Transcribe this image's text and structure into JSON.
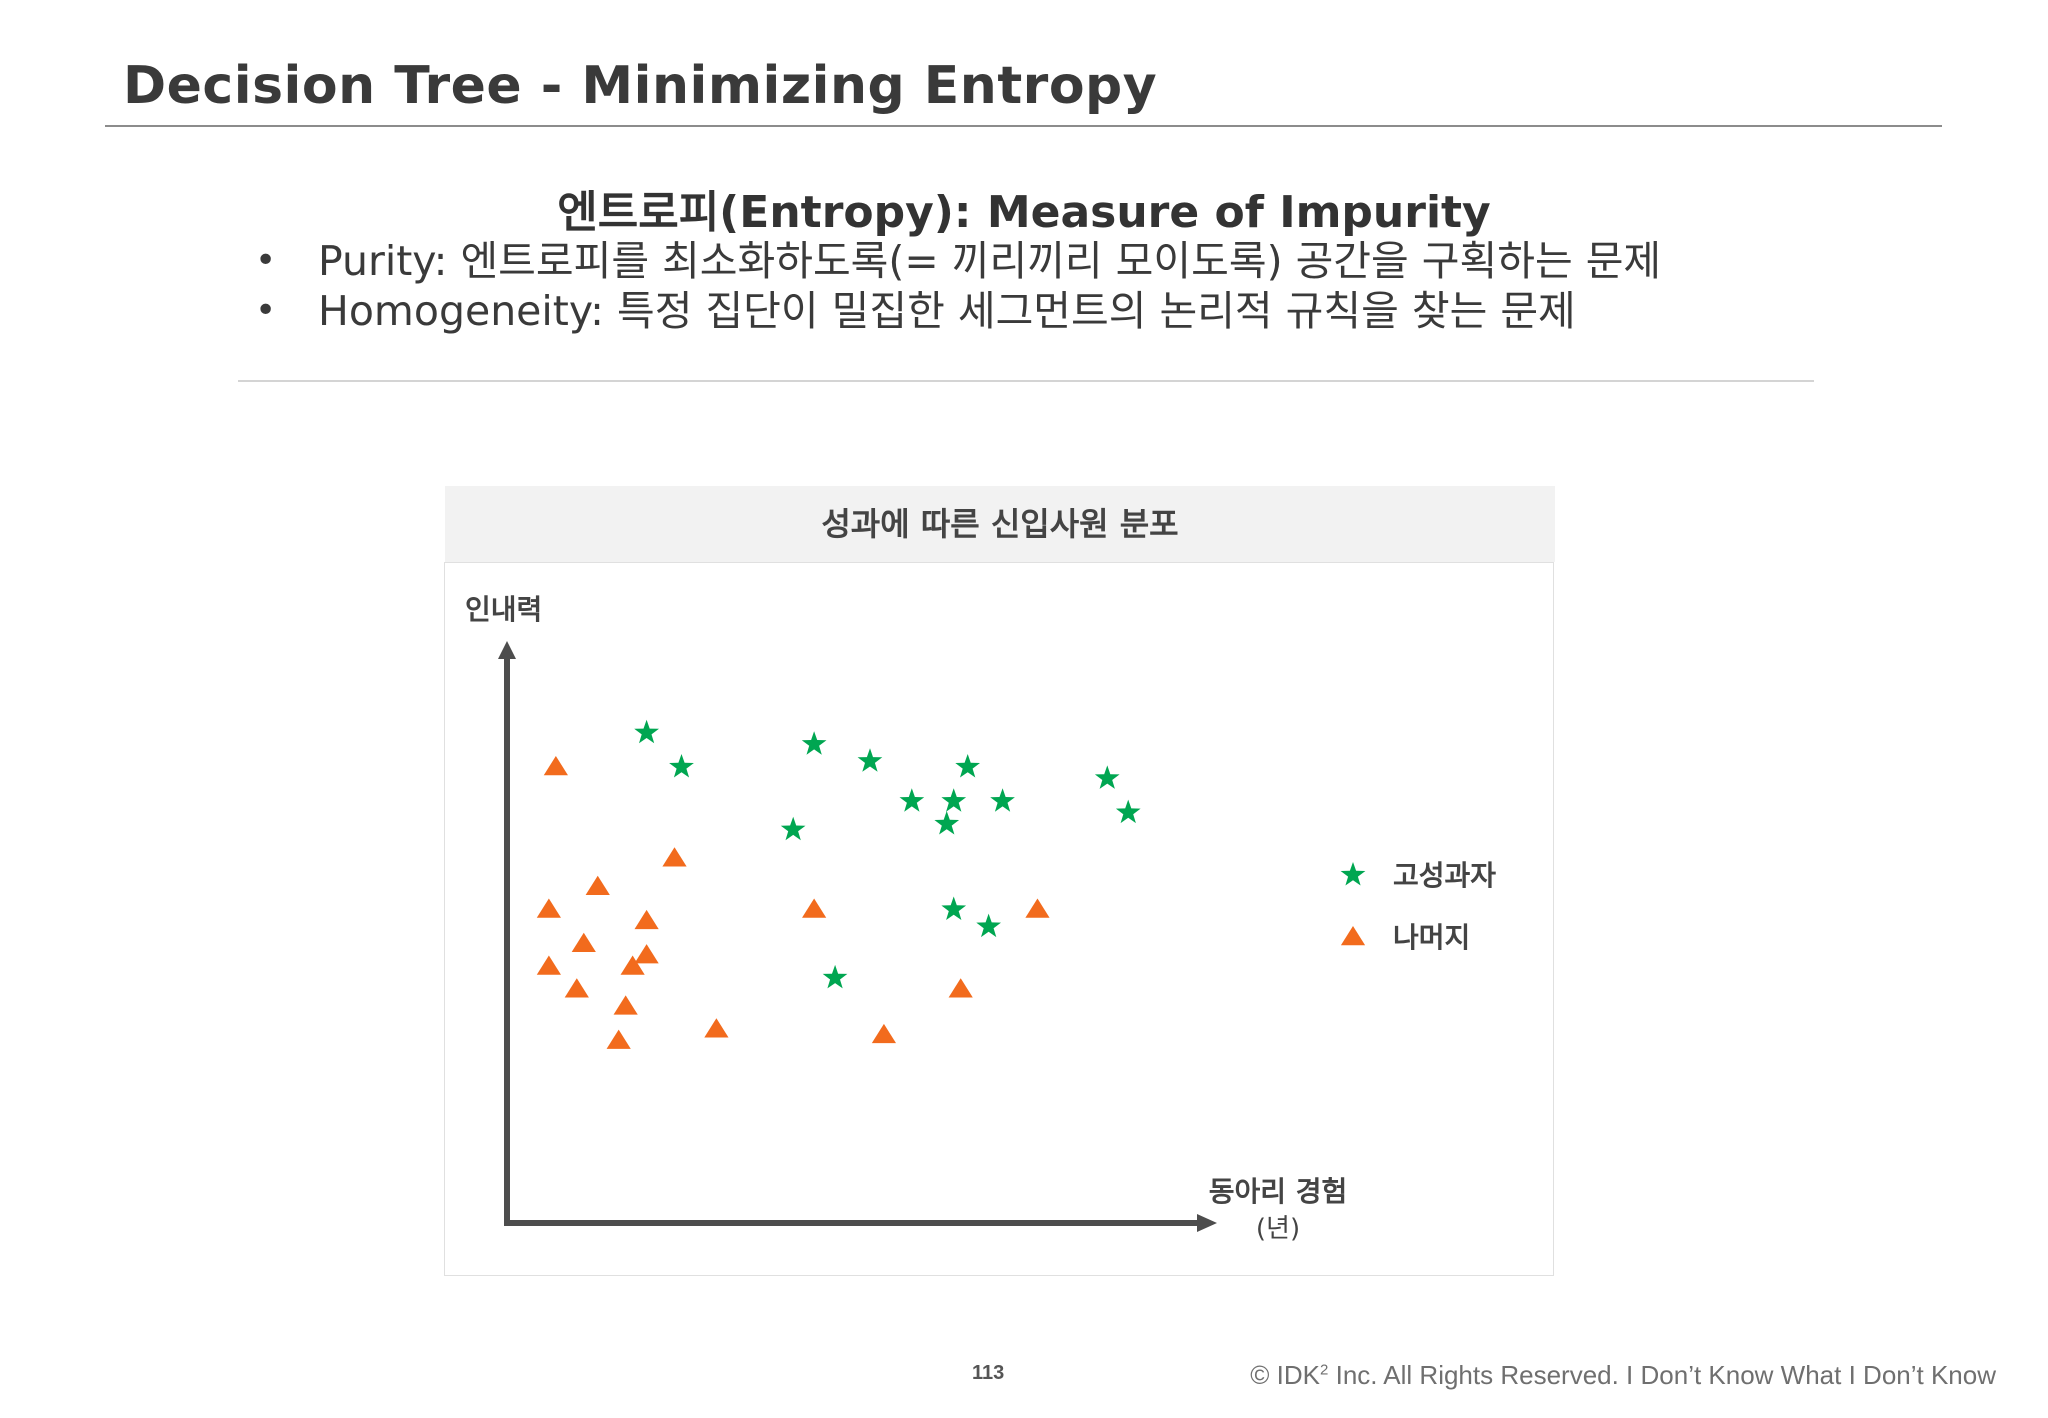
{
  "header": {
    "title": "Decision Tree - Minimizing Entropy"
  },
  "subtitle": "엔트로피(Entropy): Measure of Impurity",
  "bullets": [
    {
      "marker": "•",
      "text": "Purity: 엔트로피를 최소화하도록(= 끼리끼리 모이도록) 공간을 구획하는 문제"
    },
    {
      "marker": "•",
      "text": "Homogeneity: 특정 집단이 밀집한 세그먼트의 논리적 규칙을 찾는 문제"
    }
  ],
  "chart_data": {
    "type": "scatter",
    "title": "성과에 따른 신입사원 분포",
    "ylabel": "인내력",
    "xlabel": "동아리 경험",
    "xlabel_unit": "(년)",
    "grid": false,
    "ticks": false,
    "legend_position": "right",
    "series": [
      {
        "name": "고성과자",
        "marker": "star",
        "color": "#00a651",
        "points": [
          [
            0.2,
            0.86
          ],
          [
            0.25,
            0.8
          ],
          [
            0.44,
            0.84
          ],
          [
            0.52,
            0.81
          ],
          [
            0.66,
            0.8
          ],
          [
            0.86,
            0.78
          ],
          [
            0.89,
            0.72
          ],
          [
            0.58,
            0.74
          ],
          [
            0.64,
            0.74
          ],
          [
            0.71,
            0.74
          ],
          [
            0.63,
            0.7
          ],
          [
            0.41,
            0.69
          ],
          [
            0.64,
            0.55
          ],
          [
            0.69,
            0.52
          ],
          [
            0.47,
            0.43
          ]
        ]
      },
      {
        "name": "나머지",
        "marker": "triangle",
        "color": "#f26b1d",
        "points": [
          [
            0.07,
            0.8
          ],
          [
            0.24,
            0.64
          ],
          [
            0.13,
            0.59
          ],
          [
            0.06,
            0.55
          ],
          [
            0.2,
            0.53
          ],
          [
            0.11,
            0.49
          ],
          [
            0.2,
            0.47
          ],
          [
            0.06,
            0.45
          ],
          [
            0.18,
            0.45
          ],
          [
            0.1,
            0.41
          ],
          [
            0.17,
            0.38
          ],
          [
            0.16,
            0.32
          ],
          [
            0.3,
            0.34
          ],
          [
            0.44,
            0.55
          ],
          [
            0.76,
            0.55
          ],
          [
            0.65,
            0.41
          ],
          [
            0.54,
            0.33
          ]
        ]
      }
    ]
  },
  "footer": {
    "page_number": "113",
    "copyright_prefix": "© IDK",
    "copyright_sup": "2",
    "copyright_suffix": " Inc. All Rights Reserved.  I Don’t Know What I Don’t Know"
  }
}
